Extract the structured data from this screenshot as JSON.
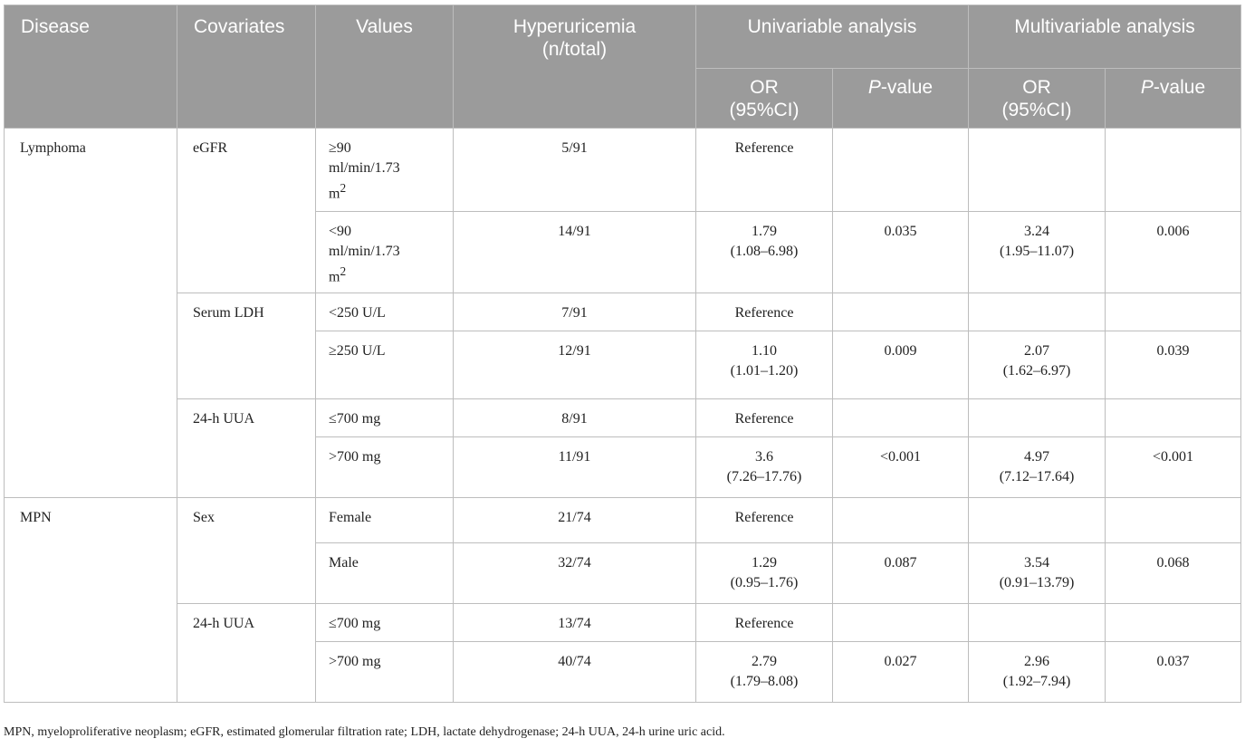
{
  "headers": {
    "disease": "Disease",
    "covariates": "Covariates",
    "values": "Values",
    "hyperuricemia": [
      "Hyperuricemia",
      "(n/total)"
    ],
    "univariable": "Univariable analysis",
    "multivariable": "Multivariable analysis",
    "or_ci": [
      "OR",
      "(95%CI)"
    ],
    "p_italic": "P",
    "p_rest": "-value"
  },
  "cells": {
    "lymphoma": "Lymphoma",
    "egfr": "eGFR",
    "egfr_ge90_lines": [
      "≥90",
      "ml/min/1.73",
      "m"
    ],
    "egfr_lt90_lines": [
      "<90",
      "ml/min/1.73",
      "m"
    ],
    "sup2": "2",
    "r1_hyp": "5/91",
    "r2_hyp": "14/91",
    "reference": "Reference",
    "r2_uni_or": [
      "1.79",
      "(1.08–6.98)"
    ],
    "r2_uni_p": "0.035",
    "r2_multi_or": [
      "3.24",
      "(1.95–11.07)"
    ],
    "r2_multi_p": "0.006",
    "serum_ldh": "Serum LDH",
    "r3_val": "<250 U/L",
    "r3_hyp": "7/91",
    "r4_val": "≥250 U/L",
    "r4_hyp": "12/91",
    "r4_uni_or": [
      "1.10",
      "(1.01–1.20)"
    ],
    "r4_uni_p": "0.009",
    "r4_multi_or": [
      "2.07",
      "(1.62–6.97)"
    ],
    "r4_multi_p": "0.039",
    "uua": "24-h UUA",
    "r5_val": "≤700 mg",
    "r5_hyp": "8/91",
    "r6_val": ">700 mg",
    "r6_hyp": "11/91",
    "r6_uni_or": [
      "3.6",
      "(7.26–17.76)"
    ],
    "r6_uni_p": "<0.001",
    "r6_multi_or": [
      "4.97",
      "(7.12–17.64)"
    ],
    "r6_multi_p": "<0.001",
    "mpn": "MPN",
    "sex": "Sex",
    "r7_val": "Female",
    "r7_hyp": "21/74",
    "r8_val": "Male",
    "r8_hyp": "32/74",
    "r8_uni_or": [
      "1.29",
      "(0.95–1.76)"
    ],
    "r8_uni_p": "0.087",
    "r8_multi_or": [
      "3.54",
      "(0.91–13.79)"
    ],
    "r8_multi_p": "0.068",
    "r9_val": "≤700 mg",
    "r9_hyp": "13/74",
    "r10_val": ">700 mg",
    "r10_hyp": "40/74",
    "r10_uni_or": [
      "2.79",
      "(1.79–8.08)"
    ],
    "r10_uni_p": "0.027",
    "r10_multi_or": [
      "2.96",
      "(1.92–7.94)"
    ],
    "r10_multi_p": "0.037"
  },
  "footnote": "MPN, myeloproliferative neoplasm; eGFR, estimated glomerular filtration rate; LDH, lactate dehydrogenase; 24-h UUA, 24-h urine uric acid.",
  "colors": {
    "header_bg": "#9b9b9b",
    "header_text": "#ffffff",
    "border": "#bdbdbd",
    "body_text": "#222222"
  }
}
